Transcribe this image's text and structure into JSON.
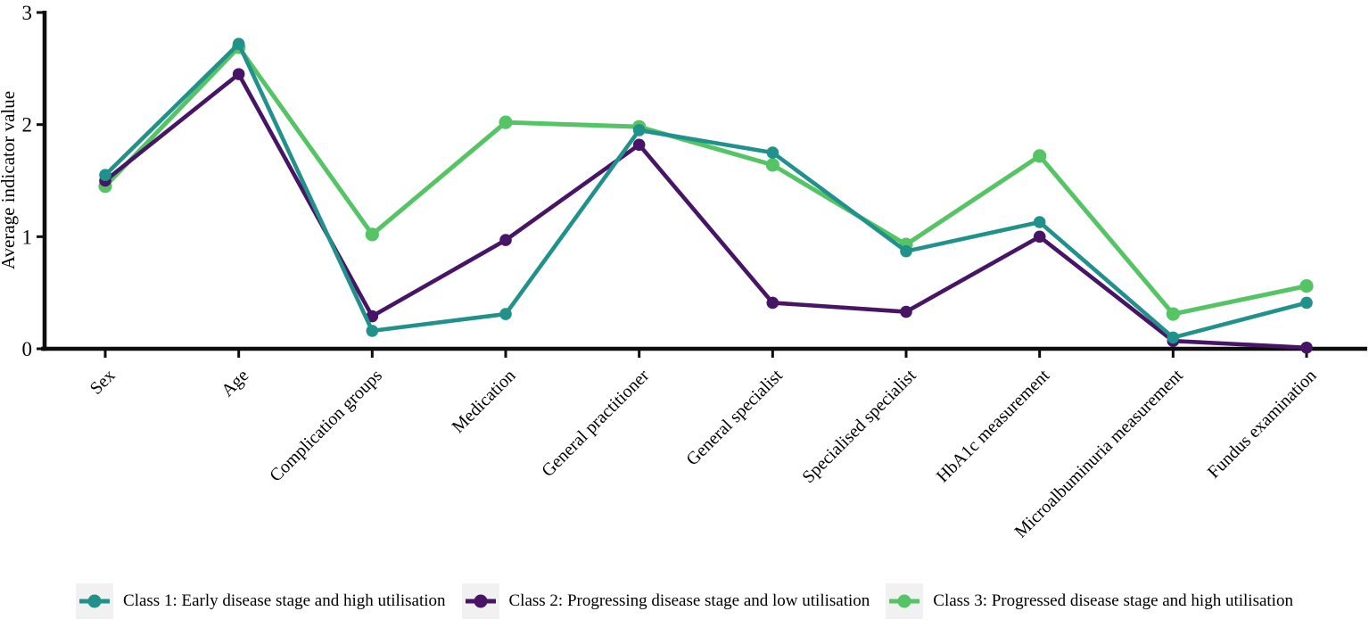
{
  "chart_data": {
    "type": "line",
    "title": "",
    "xlabel": "",
    "ylabel": "Average indicator value",
    "ylim": [
      0,
      3
    ],
    "yticks": [
      "0",
      "1",
      "2",
      "3"
    ],
    "grid": false,
    "legend_position": "bottom",
    "categories": [
      "Sex",
      "Age",
      "Complication groups",
      "Medication",
      "General practitioner",
      "General specialist",
      "Specialised specialist",
      "HbA1c measurement",
      "Microalbuminuria measurement",
      "Fundus examination"
    ],
    "series": [
      {
        "name": "Class 1: Early disease stage and high utilisation",
        "color": "#21918c",
        "marker": "circle",
        "values": [
          1.55,
          2.72,
          0.16,
          0.31,
          1.95,
          1.75,
          0.87,
          1.13,
          0.1,
          0.41
        ]
      },
      {
        "name": "Class 2: Progressing disease stage and low utilisation",
        "color": "#481566",
        "marker": "circle",
        "values": [
          1.5,
          2.45,
          0.29,
          0.97,
          1.82,
          0.41,
          0.33,
          1.0,
          0.07,
          0.01
        ]
      },
      {
        "name": "Class 3: Progressed disease stage and high utilisation",
        "color": "#55c465",
        "marker": "circle",
        "values": [
          1.45,
          2.69,
          1.02,
          2.02,
          1.98,
          1.64,
          0.93,
          1.72,
          0.31,
          0.56
        ]
      }
    ]
  },
  "legend": {
    "swatch_bg": "#f1f1f1"
  },
  "colors": {
    "axis": "#0d0d0d",
    "text": "#000000",
    "background": "#ffffff"
  }
}
